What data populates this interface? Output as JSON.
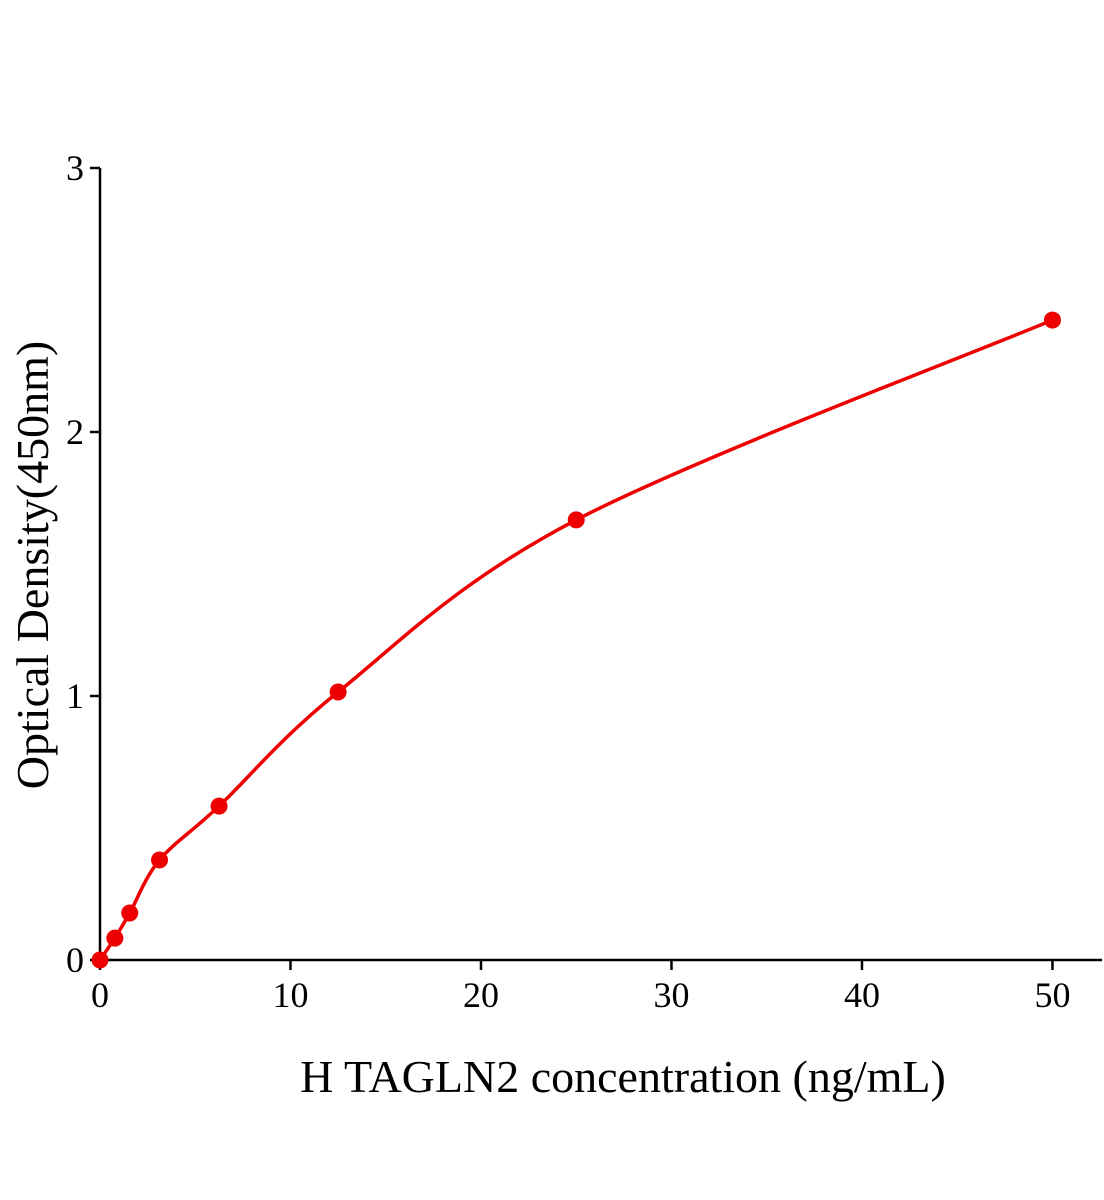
{
  "chart_data": {
    "type": "scatter",
    "x_label": "H TAGLN2 concentration (ng/mL)",
    "y_label": "Optical Density(450nm)",
    "x": [
      0,
      0.78,
      1.56,
      3.125,
      6.25,
      12.5,
      25,
      50
    ],
    "series": [
      {
        "color": "#ee0000",
        "values": [
          0,
          0.083,
          0.178,
          0.379,
          0.583,
          1.015,
          1.667,
          2.424
        ]
      }
    ],
    "xlim": [
      0,
      52.6
    ],
    "ylim": [
      0,
      3
    ],
    "xticks": [
      0,
      10,
      20,
      30,
      40,
      50
    ],
    "yticks": [
      0,
      1,
      2,
      3
    ],
    "fit_line": true
  }
}
